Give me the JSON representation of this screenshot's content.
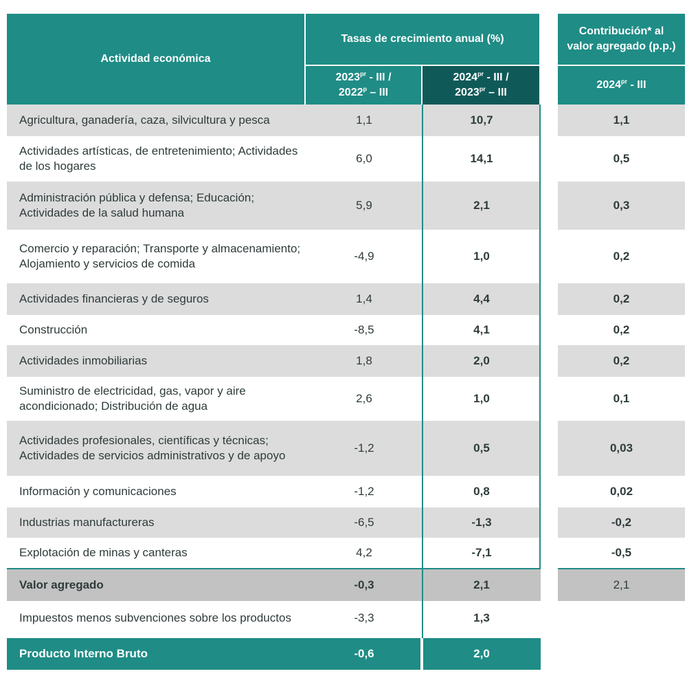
{
  "header": {
    "activity": "Actividad económica",
    "rates_group": "Tasas de crecimiento anual (%)",
    "col1_line1_year": "2023",
    "col1_line1_sup": "pr",
    "col1_line1_rest": " - III /",
    "col1_line2_year": "2022",
    "col1_line2_sup": "p",
    "col1_line2_rest": " – III",
    "col2_line1_year": "2024",
    "col2_line1_sup": "pr",
    "col2_line1_rest": " - III /",
    "col2_line2_year": "2023",
    "col2_line2_sup": "pr",
    "col2_line2_rest": " – III",
    "contrib_group_line1": "Contribución* al",
    "contrib_group_line2": "valor agregado (p.p.)",
    "contrib_col_year": "2024",
    "contrib_col_sup": "pr",
    "contrib_col_rest": " - III"
  },
  "rows": [
    {
      "label": "Agricultura, ganadería, caza, silvicultura y pesca",
      "v1": "1,1",
      "v2": "10,7",
      "contrib": "1,1"
    },
    {
      "label": "Actividades artísticas, de entretenimiento; Actividades de los hogares",
      "v1": "6,0",
      "v2": "14,1",
      "contrib": "0,5"
    },
    {
      "label": "Administración pública y defensa; Educación; Actividades de la salud humana",
      "v1": "5,9",
      "v2": "2,1",
      "contrib": "0,3"
    },
    {
      "label": "Comercio y reparación; Transporte y almacenamiento; Alojamiento y servicios de comida",
      "v1": "-4,9",
      "v2": "1,0",
      "contrib": "0,2"
    },
    {
      "label": "Actividades financieras y de seguros",
      "v1": "1,4",
      "v2": "4,4",
      "contrib": "0,2"
    },
    {
      "label": "Construcción",
      "v1": "-8,5",
      "v2": "4,1",
      "contrib": "0,2"
    },
    {
      "label": "Actividades inmobiliarias",
      "v1": "1,8",
      "v2": "2,0",
      "contrib": "0,2"
    },
    {
      "label": "Suministro de electricidad, gas, vapor y aire acondicionado; Distribución de agua",
      "v1": "2,6",
      "v2": "1,0",
      "contrib": "0,1"
    },
    {
      "label": "Actividades profesionales, científicas y técnicas; Actividades de servicios administrativos y de apoyo",
      "v1": "-1,2",
      "v2": "0,5",
      "contrib": "0,03"
    },
    {
      "label": "Información y comunicaciones",
      "v1": "-1,2",
      "v2": "0,8",
      "contrib": "0,02"
    },
    {
      "label": "Industrias manufactureras",
      "v1": "-6,5",
      "v2": "-1,3",
      "contrib": "-0,2"
    },
    {
      "label": "Explotación de minas y canteras",
      "v1": "4,2",
      "v2": "-7,1",
      "contrib": "-0,5"
    }
  ],
  "value_added": {
    "label": "Valor agregado",
    "v1": "-0,3",
    "v2": "2,1",
    "contrib": "2,1"
  },
  "taxes": {
    "label": "Impuestos menos subvenciones sobre los productos",
    "v1": "-3,3",
    "v2": "1,3"
  },
  "gdp": {
    "label": "Producto Interno Bruto",
    "v1": "-0,6",
    "v2": "2,0"
  }
}
